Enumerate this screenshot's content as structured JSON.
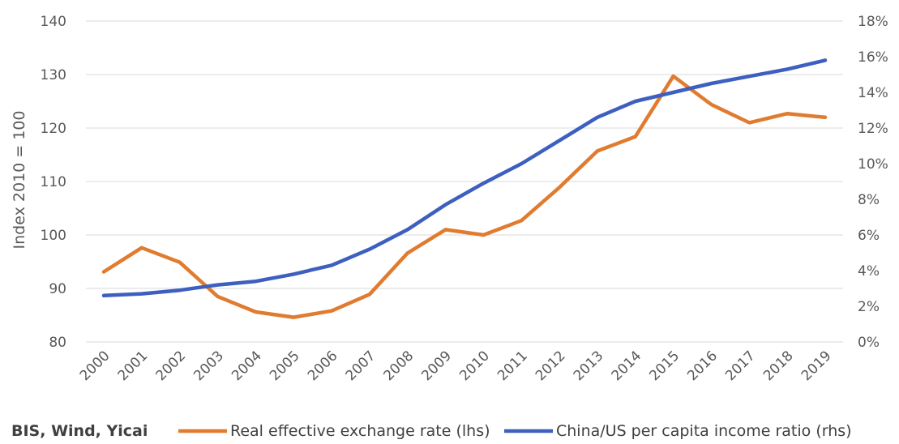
{
  "chart_data": {
    "type": "line",
    "categories": [
      "2000",
      "2001",
      "2002",
      "2003",
      "2004",
      "2005",
      "2006",
      "2007",
      "2008",
      "2009",
      "2010",
      "2011",
      "2012",
      "2013",
      "2014",
      "2015",
      "2016",
      "2017",
      "2018",
      "2019"
    ],
    "ylabel_left": "Index 2010 = 100",
    "ylim_left": [
      80,
      140
    ],
    "yticks_left": [
      "80",
      "90",
      "100",
      "110",
      "120",
      "130",
      "140"
    ],
    "ylim_right": [
      0,
      18
    ],
    "yticks_right": [
      "0%",
      "2%",
      "4%",
      "6%",
      "8%",
      "10%",
      "12%",
      "14%",
      "16%",
      "18%"
    ],
    "grid": true,
    "legend_position": "bottom",
    "source": "BIS, Wind, Yicai",
    "series": [
      {
        "name": "Real effective exchange rate (lhs)",
        "axis": "left",
        "color": "#E07B2F",
        "values": [
          93.1,
          97.6,
          94.9,
          88.5,
          85.6,
          84.6,
          85.8,
          88.9,
          96.6,
          101.0,
          100.0,
          102.7,
          108.9,
          115.7,
          118.4,
          129.7,
          124.4,
          121.0,
          122.7,
          122.0
        ]
      },
      {
        "name": "China/US per capita income ratio (rhs)",
        "axis": "right",
        "color": "#3D5FBF",
        "values": [
          2.6,
          2.7,
          2.9,
          3.2,
          3.4,
          3.8,
          4.3,
          5.2,
          6.3,
          7.7,
          8.9,
          10.0,
          11.3,
          12.6,
          13.5,
          14.0,
          14.5,
          14.9,
          15.3,
          15.8
        ]
      }
    ]
  }
}
